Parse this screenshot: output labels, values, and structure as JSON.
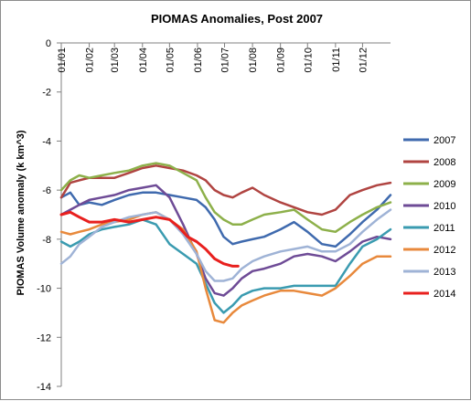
{
  "chart_data": {
    "type": "line",
    "title": "PIOMAS Anomalies, Post 2007",
    "xlabel": "",
    "ylabel": "PIOMAS Volume anomaly  (k km^3)",
    "xlim": [
      0,
      365
    ],
    "ylim": [
      -14,
      0
    ],
    "y_ticks": [
      0,
      -2,
      -4,
      -6,
      -8,
      -10,
      -12,
      -14
    ],
    "x_tick_days": [
      0,
      31,
      59,
      90,
      120,
      151,
      181,
      212,
      243,
      273,
      304,
      334
    ],
    "x_tick_labels": [
      "01/01",
      "01/02",
      "01/03",
      "01/04",
      "01/05",
      "01/06",
      "01/07",
      "01/08",
      "01/09",
      "01/10",
      "01/11",
      "01/12"
    ],
    "x_tick_position": "top",
    "grid": false,
    "legend_position": "right",
    "series": [
      {
        "name": "2007",
        "color": "#3F6AAE",
        "x": [
          0,
          10,
          20,
          31,
          45,
          59,
          75,
          90,
          105,
          120,
          135,
          150,
          160,
          170,
          180,
          190,
          200,
          212,
          225,
          243,
          258,
          273,
          289,
          304,
          320,
          334,
          350,
          365
        ],
        "y": [
          -6.3,
          -6.1,
          -6.6,
          -6.5,
          -6.6,
          -6.4,
          -6.2,
          -6.1,
          -6.1,
          -6.2,
          -6.3,
          -6.4,
          -6.7,
          -7.2,
          -7.9,
          -8.2,
          -8.1,
          -8.0,
          -7.9,
          -7.6,
          -7.3,
          -7.7,
          -8.2,
          -8.3,
          -7.8,
          -7.3,
          -6.8,
          -6.2
        ]
      },
      {
        "name": "2008",
        "color": "#B04441",
        "x": [
          0,
          10,
          20,
          31,
          45,
          59,
          75,
          90,
          105,
          120,
          135,
          150,
          160,
          170,
          180,
          190,
          200,
          212,
          225,
          243,
          258,
          273,
          289,
          304,
          320,
          334,
          350,
          365
        ],
        "y": [
          -6.3,
          -5.7,
          -5.6,
          -5.5,
          -5.5,
          -5.5,
          -5.3,
          -5.1,
          -5.0,
          -5.1,
          -5.2,
          -5.4,
          -5.6,
          -6.0,
          -6.2,
          -6.3,
          -6.1,
          -5.9,
          -6.2,
          -6.5,
          -6.7,
          -6.9,
          -7.0,
          -6.8,
          -6.2,
          -6.0,
          -5.8,
          -5.7
        ]
      },
      {
        "name": "2009",
        "color": "#8DB04A",
        "x": [
          0,
          10,
          20,
          31,
          45,
          59,
          75,
          90,
          105,
          120,
          135,
          150,
          160,
          170,
          180,
          190,
          200,
          212,
          225,
          243,
          258,
          273,
          289,
          304,
          320,
          334,
          350,
          365
        ],
        "y": [
          -6.0,
          -5.6,
          -5.4,
          -5.5,
          -5.4,
          -5.3,
          -5.2,
          -5.0,
          -4.9,
          -5.0,
          -5.3,
          -5.6,
          -6.3,
          -6.9,
          -7.2,
          -7.4,
          -7.4,
          -7.2,
          -7.0,
          -6.9,
          -6.8,
          -7.2,
          -7.6,
          -7.7,
          -7.3,
          -7.0,
          -6.7,
          -6.5
        ]
      },
      {
        "name": "2010",
        "color": "#6E4B96",
        "x": [
          0,
          10,
          20,
          31,
          45,
          59,
          75,
          90,
          105,
          120,
          135,
          150,
          160,
          170,
          180,
          190,
          200,
          212,
          225,
          243,
          258,
          273,
          289,
          304,
          320,
          334,
          350,
          365
        ],
        "y": [
          -7.0,
          -6.8,
          -6.6,
          -6.4,
          -6.3,
          -6.2,
          -6.0,
          -5.9,
          -5.8,
          -6.3,
          -7.4,
          -8.6,
          -9.6,
          -10.2,
          -10.3,
          -10.0,
          -9.6,
          -9.3,
          -9.2,
          -9.0,
          -8.7,
          -8.6,
          -8.7,
          -8.9,
          -8.5,
          -8.1,
          -7.9,
          -8.0
        ]
      },
      {
        "name": "2011",
        "color": "#3A9BB0",
        "x": [
          0,
          10,
          20,
          31,
          45,
          59,
          75,
          90,
          105,
          120,
          135,
          150,
          160,
          170,
          180,
          190,
          200,
          212,
          225,
          243,
          258,
          273,
          289,
          304,
          320,
          334,
          350,
          365
        ],
        "y": [
          -8.1,
          -8.3,
          -8.1,
          -7.8,
          -7.6,
          -7.5,
          -7.4,
          -7.2,
          -7.4,
          -8.2,
          -8.6,
          -9.0,
          -9.8,
          -10.6,
          -11.0,
          -10.7,
          -10.3,
          -10.1,
          -10.0,
          -10.0,
          -9.9,
          -9.9,
          -9.9,
          -9.9,
          -9.0,
          -8.3,
          -8.0,
          -7.6
        ]
      },
      {
        "name": "2012",
        "color": "#E8893C",
        "x": [
          0,
          10,
          20,
          31,
          45,
          59,
          75,
          90,
          105,
          120,
          135,
          150,
          160,
          170,
          180,
          190,
          200,
          212,
          225,
          243,
          258,
          273,
          289,
          304,
          320,
          334,
          350,
          365
        ],
        "y": [
          -7.7,
          -7.8,
          -7.7,
          -7.6,
          -7.4,
          -7.3,
          -7.2,
          -7.0,
          -6.9,
          -7.2,
          -7.6,
          -8.5,
          -10.0,
          -11.3,
          -11.4,
          -11.0,
          -10.7,
          -10.5,
          -10.3,
          -10.1,
          -10.1,
          -10.2,
          -10.3,
          -10.0,
          -9.5,
          -9.0,
          -8.7,
          -8.7
        ]
      },
      {
        "name": "2013",
        "color": "#9FB3D6",
        "x": [
          0,
          10,
          20,
          31,
          45,
          59,
          75,
          90,
          105,
          120,
          135,
          150,
          160,
          170,
          180,
          190,
          200,
          212,
          225,
          243,
          258,
          273,
          289,
          304,
          320,
          334,
          350,
          365
        ],
        "y": [
          -9.0,
          -8.7,
          -8.2,
          -7.9,
          -7.5,
          -7.3,
          -7.1,
          -7.0,
          -6.9,
          -7.2,
          -7.8,
          -8.6,
          -9.3,
          -9.7,
          -9.7,
          -9.6,
          -9.2,
          -8.9,
          -8.7,
          -8.5,
          -8.4,
          -8.3,
          -8.5,
          -8.5,
          -8.2,
          -7.7,
          -7.2,
          -6.8
        ]
      },
      {
        "name": "2014",
        "color": "#E8201E",
        "x": [
          0,
          10,
          20,
          31,
          45,
          59,
          75,
          90,
          105,
          120,
          130,
          140,
          150,
          160,
          170,
          180,
          190,
          196
        ],
        "y": [
          -7.0,
          -6.9,
          -7.1,
          -7.3,
          -7.3,
          -7.2,
          -7.3,
          -7.2,
          -7.1,
          -7.2,
          -7.5,
          -7.9,
          -8.1,
          -8.4,
          -8.8,
          -9.0,
          -9.1,
          -9.1
        ]
      }
    ]
  }
}
